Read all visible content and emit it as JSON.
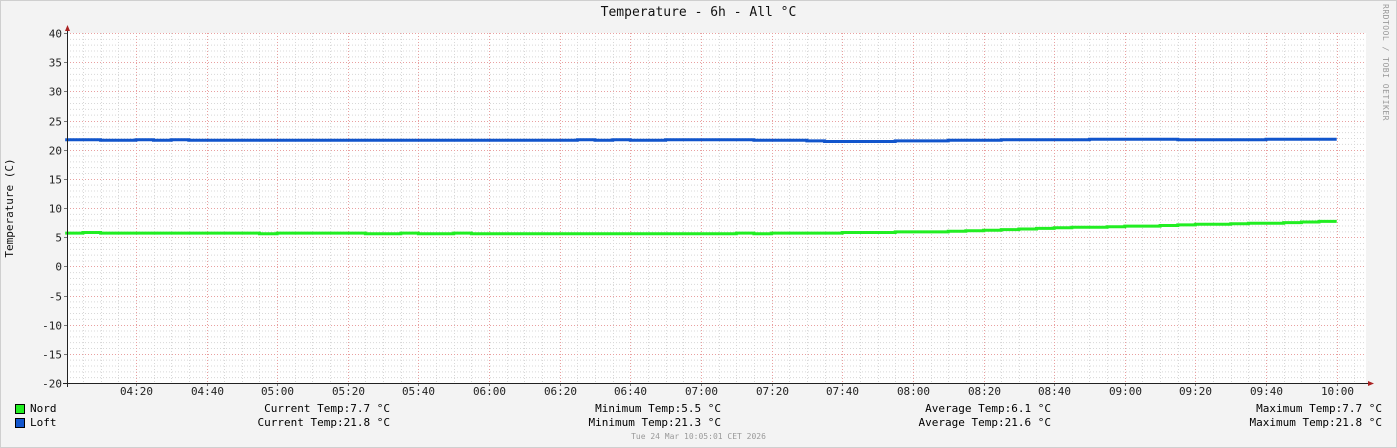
{
  "chart_data": {
    "type": "line",
    "title": "Temperature - 6h - All °C",
    "ylabel": "Temperature (C)",
    "xlabel": "",
    "ylim": [
      -20,
      40
    ],
    "yticks": [
      "40",
      "35",
      "30",
      "25",
      "20",
      "15",
      "10",
      "5",
      "0",
      "-5",
      "-10",
      "-15",
      "-20"
    ],
    "xticks": [
      "04:20",
      "04:40",
      "05:00",
      "05:20",
      "05:40",
      "06:00",
      "06:20",
      "06:40",
      "07:00",
      "07:20",
      "07:40",
      "08:00",
      "08:20",
      "08:40",
      "09:00",
      "09:20",
      "09:40",
      "10:00"
    ],
    "x": [
      "04:05",
      "04:10",
      "04:15",
      "04:20",
      "04:25",
      "04:30",
      "04:35",
      "04:40",
      "04:45",
      "04:50",
      "04:55",
      "05:00",
      "05:05",
      "05:10",
      "05:15",
      "05:20",
      "05:25",
      "05:30",
      "05:35",
      "05:40",
      "05:45",
      "05:50",
      "05:55",
      "06:00",
      "06:05",
      "06:10",
      "06:15",
      "06:20",
      "06:25",
      "06:30",
      "06:35",
      "06:40",
      "06:45",
      "06:50",
      "06:55",
      "07:00",
      "07:05",
      "07:10",
      "07:15",
      "07:20",
      "07:25",
      "07:30",
      "07:35",
      "07:40",
      "07:45",
      "07:50",
      "07:55",
      "08:00",
      "08:05",
      "08:10",
      "08:15",
      "08:20",
      "08:25",
      "08:30",
      "08:35",
      "08:40",
      "08:45",
      "08:50",
      "08:55",
      "09:00",
      "09:05",
      "09:10",
      "09:15",
      "09:20",
      "09:25",
      "09:30",
      "09:35",
      "09:40",
      "09:45",
      "09:50",
      "09:55",
      "10:00"
    ],
    "series": [
      {
        "name": "Nord",
        "color": "#22ee22",
        "values": [
          5.7,
          5.8,
          5.7,
          5.7,
          5.7,
          5.7,
          5.7,
          5.7,
          5.7,
          5.7,
          5.7,
          5.6,
          5.7,
          5.7,
          5.7,
          5.7,
          5.7,
          5.6,
          5.6,
          5.7,
          5.6,
          5.6,
          5.7,
          5.6,
          5.6,
          5.6,
          5.6,
          5.6,
          5.6,
          5.6,
          5.6,
          5.6,
          5.6,
          5.6,
          5.6,
          5.6,
          5.6,
          5.6,
          5.7,
          5.6,
          5.7,
          5.7,
          5.7,
          5.7,
          5.8,
          5.8,
          5.8,
          5.9,
          5.9,
          5.9,
          6.0,
          6.1,
          6.2,
          6.3,
          6.4,
          6.5,
          6.6,
          6.7,
          6.7,
          6.8,
          6.9,
          6.9,
          7.0,
          7.1,
          7.2,
          7.2,
          7.3,
          7.4,
          7.4,
          7.5,
          7.6,
          7.7
        ]
      },
      {
        "name": "Loft",
        "color": "#1155cc",
        "values": [
          21.7,
          21.7,
          21.6,
          21.6,
          21.7,
          21.6,
          21.7,
          21.6,
          21.6,
          21.6,
          21.6,
          21.6,
          21.6,
          21.6,
          21.6,
          21.6,
          21.6,
          21.6,
          21.6,
          21.6,
          21.6,
          21.6,
          21.6,
          21.6,
          21.6,
          21.6,
          21.6,
          21.6,
          21.6,
          21.7,
          21.6,
          21.7,
          21.6,
          21.6,
          21.7,
          21.7,
          21.7,
          21.7,
          21.7,
          21.6,
          21.6,
          21.6,
          21.5,
          21.4,
          21.4,
          21.4,
          21.4,
          21.5,
          21.5,
          21.5,
          21.6,
          21.6,
          21.6,
          21.7,
          21.7,
          21.7,
          21.7,
          21.7,
          21.8,
          21.8,
          21.8,
          21.8,
          21.8,
          21.7,
          21.7,
          21.7,
          21.7,
          21.7,
          21.8,
          21.8,
          21.8,
          21.8
        ]
      }
    ],
    "grid": true,
    "legend": "bottom"
  },
  "legend": {
    "nord": {
      "name": "Nord",
      "color": "#22ee22",
      "current": "Current Temp:7.7 °C",
      "minimum": "Minimum Temp:5.5 °C",
      "average": "Average Temp:6.1 °C",
      "maximum": "Maximum Temp:7.7 °C"
    },
    "loft": {
      "name": "Loft",
      "color": "#1155cc",
      "current": "Current Temp:21.8 °C",
      "minimum": "Minimum Temp:21.3 °C",
      "average": "Average Temp:21.6 °C",
      "maximum": "Maximum Temp:21.8 °C"
    }
  },
  "watermark": "RRDTOOL / TOBI OETIKER",
  "footer": "Tue 24 Mar 10:05:01 CET 2026"
}
